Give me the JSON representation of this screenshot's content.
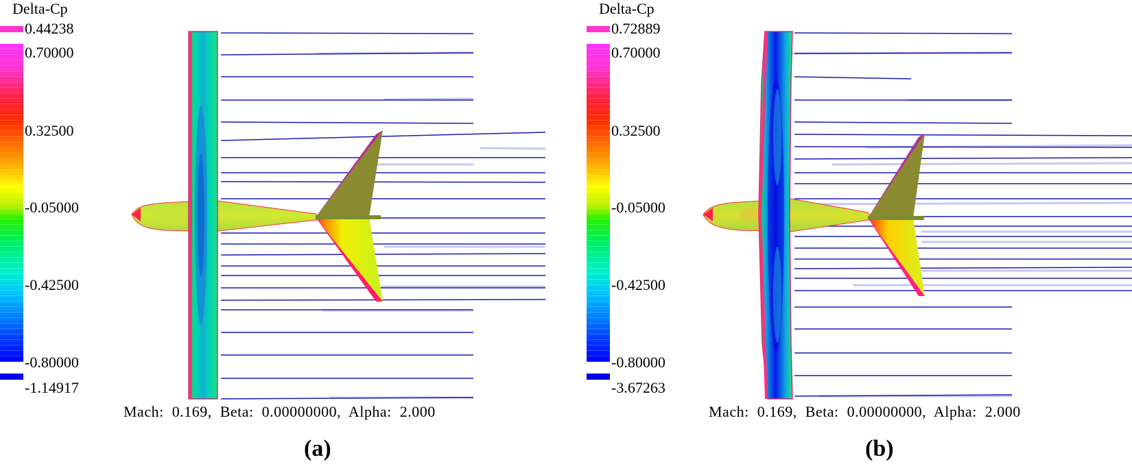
{
  "panels": [
    {
      "label": "(a)",
      "legend": {
        "title": "Delta-Cp",
        "max_value": "0.44238",
        "ticks": [
          "0.70000",
          "0.32500",
          "-0.05000",
          "-0.42500",
          "-0.80000"
        ],
        "min_value": "-1.14917"
      },
      "conditions": "Mach:  0.169,  Beta:  0.00000000,  Alpha:  2.000"
    },
    {
      "label": "(b)",
      "legend": {
        "title": "Delta-Cp",
        "max_value": "0.72889",
        "ticks": [
          "0.70000",
          "0.32500",
          "-0.05000",
          "-0.42500",
          "-0.80000"
        ],
        "min_value": "-3.67263"
      },
      "conditions": "Mach:  0.169,  Beta:  0.00000000,  Alpha:  2.000"
    }
  ],
  "colors": {
    "streamline": "#1a1ab8",
    "wake": "#c8c8f0",
    "max_swatch": "#ff33cc",
    "min_swatch": "#0000ee"
  }
}
